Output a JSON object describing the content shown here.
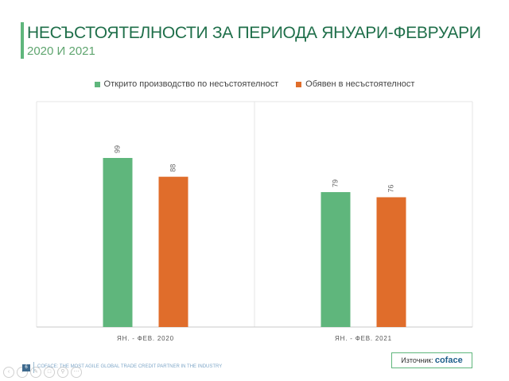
{
  "title": "НЕСЪСТОЯТЕЛНОСТИ ЗА ПЕРИОДА ЯНУАРИ-ФЕВРУАРИ",
  "subtitle": "2020 И 2021",
  "colors": {
    "accent": "#5fb67c",
    "series1": "#5fb67c",
    "series2": "#e06d2b"
  },
  "chart_data": {
    "type": "bar",
    "categories": [
      "ЯН. - ФЕВ. 2020",
      "ЯН. - ФЕВ. 2021"
    ],
    "series": [
      {
        "name": "Открито производство по несъстоятелност",
        "values": [
          99,
          79
        ]
      },
      {
        "name": "Обявен в несъстоятелност",
        "values": [
          88,
          76
        ]
      }
    ],
    "ylim": [
      0,
      132
    ],
    "grid": false,
    "legend": "top-center"
  },
  "footer": {
    "page_number": "6",
    "tagline": "COFACE: THE MOST AGILE GLOBAL TRADE CREDIT PARTNER IN THE INDUSTRY",
    "source_label": "Източник:",
    "source_brand": "coface"
  },
  "nav": {
    "icons": [
      "back-icon",
      "forward-icon",
      "pen-icon",
      "copy-icon",
      "zoom-icon",
      "more-icon"
    ]
  }
}
